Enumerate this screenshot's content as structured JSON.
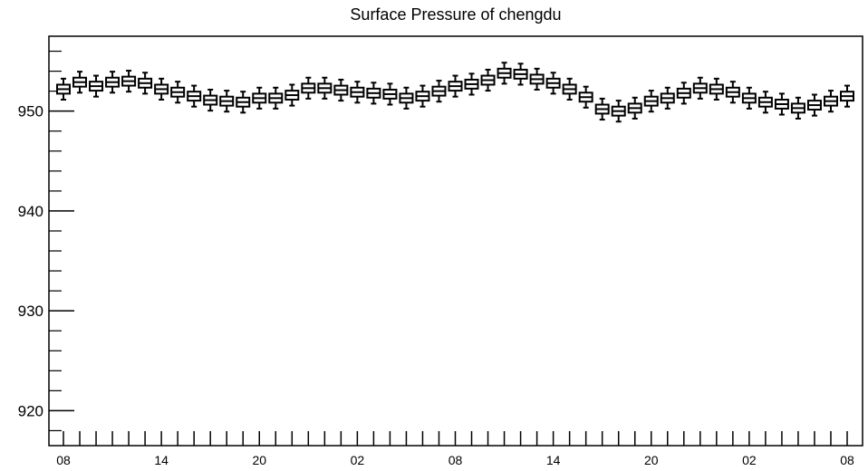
{
  "chart_data": {
    "type": "box",
    "title": "Surface Pressure of chengdu",
    "xlabel": "",
    "ylabel": "",
    "ylim": [
      916.5,
      957.5
    ],
    "x_tick_labels": [
      "08",
      "14",
      "20",
      "02",
      "08",
      "14",
      "20",
      "02",
      "08"
    ],
    "y_tick_labels": [
      "920",
      "930",
      "940",
      "950"
    ],
    "y_tick_values": [
      920,
      930,
      940,
      950
    ],
    "grid": false,
    "legend": "none",
    "series_medians": [
      952.2,
      952.9,
      952.5,
      952.9,
      953.0,
      952.8,
      952.2,
      951.9,
      951.5,
      951.1,
      951.0,
      950.9,
      951.3,
      951.3,
      951.6,
      952.3,
      952.3,
      952.1,
      951.9,
      951.8,
      951.7,
      951.3,
      951.5,
      952.0,
      952.5,
      952.7,
      953.1,
      953.8,
      953.7,
      953.2,
      952.8,
      952.2,
      951.4,
      950.2,
      950.0,
      950.3,
      951.0,
      951.3,
      951.8,
      952.3,
      952.2,
      951.9,
      951.3,
      950.9,
      950.7,
      950.3,
      950.6,
      951.0,
      951.5
    ],
    "box_half_height": 0.45,
    "whisker_half_range": 1.05
  }
}
